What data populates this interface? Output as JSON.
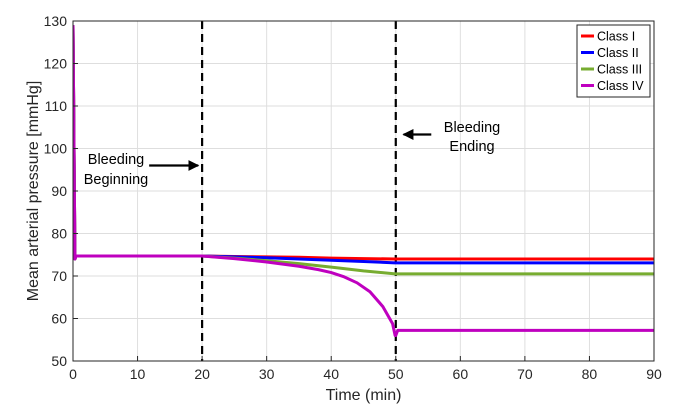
{
  "chart_data": {
    "type": "line",
    "title": "",
    "xlabel": "Time (min)",
    "ylabel": "Mean arterial pressure [mmHg]",
    "xlim": [
      0,
      90
    ],
    "ylim": [
      50,
      130
    ],
    "xticks": [
      0,
      10,
      20,
      30,
      40,
      50,
      60,
      70,
      80,
      90
    ],
    "yticks": [
      50,
      60,
      70,
      80,
      90,
      100,
      110,
      120,
      130
    ],
    "grid": true,
    "legend_position": "top-right",
    "series": [
      {
        "name": "Class I",
        "color": "#ff0000",
        "x": [
          0,
          0.3,
          0.45,
          20,
          25,
          30,
          35,
          40,
          45,
          49.9,
          50,
          60,
          70,
          80,
          90
        ],
        "y": [
          129,
          74,
          74.7,
          74.7,
          74.6,
          74.5,
          74.4,
          74.2,
          74.1,
          74.0,
          74.0,
          74.0,
          74.0,
          74.0,
          74.0
        ]
      },
      {
        "name": "Class II",
        "color": "#0000ff",
        "x": [
          0,
          0.3,
          0.45,
          20,
          25,
          30,
          35,
          40,
          45,
          49.9,
          50,
          60,
          70,
          80,
          90
        ],
        "y": [
          129,
          74,
          74.7,
          74.7,
          74.5,
          74.3,
          74.0,
          73.7,
          73.4,
          73.1,
          73.1,
          73.1,
          73.1,
          73.1,
          73.1
        ]
      },
      {
        "name": "Class III",
        "color": "#77ac30",
        "x": [
          0,
          0.3,
          0.45,
          20,
          25,
          30,
          35,
          40,
          45,
          49.9,
          50,
          60,
          70,
          80,
          90
        ],
        "y": [
          129,
          74,
          74.7,
          74.7,
          74.2,
          73.6,
          72.9,
          72.1,
          71.2,
          70.5,
          70.5,
          70.5,
          70.5,
          70.5,
          70.5
        ]
      },
      {
        "name": "Class IV",
        "color": "#bf00bf",
        "x": [
          0,
          0.3,
          0.45,
          20,
          25,
          30,
          35,
          38,
          40,
          42,
          44,
          46,
          48,
          49.5,
          49.9,
          50,
          50.3,
          60,
          70,
          80,
          90
        ],
        "y": [
          129,
          74,
          74.7,
          74.7,
          74.1,
          73.3,
          72.3,
          71.5,
          70.8,
          69.8,
          68.4,
          66.3,
          62.8,
          58.8,
          56.0,
          56.0,
          57.2,
          57.2,
          57.2,
          57.2,
          57.2
        ]
      }
    ],
    "vlines": [
      20,
      50
    ],
    "annotations": [
      {
        "lines": [
          "Bleeding",
          "Beginning"
        ],
        "arrow_from_x": 11.8,
        "arrow_to_x": 19.4,
        "arrow_y": 96
      },
      {
        "lines": [
          "Bleeding",
          "Ending"
        ],
        "arrow_from_x": 55.5,
        "arrow_to_x": 51.2,
        "arrow_y": 103.3
      }
    ]
  }
}
